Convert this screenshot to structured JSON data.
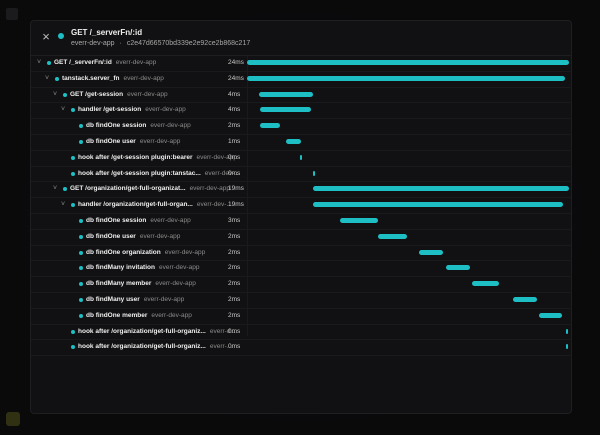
{
  "header": {
    "close_symbol": "×",
    "title": "GET /_serverFn/:id",
    "service": "everr-dev-app",
    "separator": "·",
    "trace_id": "c2e47d66570bd339e2e92ce2b868c217",
    "accent": "#1ebfc4"
  },
  "spans": [
    {
      "name": "GET /_serverFn/:id",
      "service": "everr-dev-app",
      "duration": "24ms",
      "depth": 0,
      "expander": "˅",
      "start_ms": 0,
      "length_ms": 24
    },
    {
      "name": "tanstack.server_fn",
      "service": "everr-dev-app",
      "duration": "24ms",
      "depth": 1,
      "expander": "˅",
      "start_ms": 0,
      "length_ms": 23.7
    },
    {
      "name": "GET /get-session",
      "service": "everr-dev-app",
      "duration": "4ms",
      "depth": 2,
      "expander": "˅",
      "start_ms": 0.9,
      "length_ms": 4
    },
    {
      "name": "handler /get-session",
      "service": "everr-dev-app",
      "duration": "4ms",
      "depth": 3,
      "expander": "˅",
      "start_ms": 0.95,
      "length_ms": 3.8
    },
    {
      "name": "db findOne session",
      "service": "everr-dev-app",
      "duration": "2ms",
      "depth": 4,
      "expander": "",
      "start_ms": 0.95,
      "length_ms": 1.5
    },
    {
      "name": "db findOne user",
      "service": "everr-dev-app",
      "duration": "1ms",
      "depth": 4,
      "expander": "",
      "start_ms": 2.9,
      "length_ms": 1.1
    },
    {
      "name": "hook after /get-session plugin:bearer",
      "service": "everr-dev-app",
      "duration": "0ms",
      "depth": 3,
      "expander": "",
      "start_ms": 3.95,
      "length_ms": 0.1
    },
    {
      "name": "hook after /get-session plugin:tanstac...",
      "service": "everr-dev-...",
      "duration": "0ms",
      "depth": 3,
      "expander": "",
      "start_ms": 4.9,
      "length_ms": 0.08
    },
    {
      "name": "GET /organization/get-full-organizat...",
      "service": "everr-dev-app",
      "duration": "19ms",
      "depth": 2,
      "expander": "˅",
      "start_ms": 4.95,
      "length_ms": 19.05
    },
    {
      "name": "handler /organization/get-full-organ...",
      "service": "everr-dev-...",
      "duration": "19ms",
      "depth": 3,
      "expander": "˅",
      "start_ms": 4.95,
      "length_ms": 18.6
    },
    {
      "name": "db findOne session",
      "service": "everr-dev-app",
      "duration": "3ms",
      "depth": 4,
      "expander": "",
      "start_ms": 6.9,
      "length_ms": 2.9
    },
    {
      "name": "db findOne user",
      "service": "everr-dev-app",
      "duration": "2ms",
      "depth": 4,
      "expander": "",
      "start_ms": 9.8,
      "length_ms": 2.1
    },
    {
      "name": "db findOne organization",
      "service": "everr-dev-app",
      "duration": "2ms",
      "depth": 4,
      "expander": "",
      "start_ms": 12.8,
      "length_ms": 1.8
    },
    {
      "name": "db findMany invitation",
      "service": "everr-dev-app",
      "duration": "2ms",
      "depth": 4,
      "expander": "",
      "start_ms": 14.8,
      "length_ms": 1.8
    },
    {
      "name": "db findMany member",
      "service": "everr-dev-app",
      "duration": "2ms",
      "depth": 4,
      "expander": "",
      "start_ms": 16.8,
      "length_ms": 2
    },
    {
      "name": "db findMany user",
      "service": "everr-dev-app",
      "duration": "2ms",
      "depth": 4,
      "expander": "",
      "start_ms": 19.8,
      "length_ms": 1.8
    },
    {
      "name": "db findOne member",
      "service": "everr-dev-app",
      "duration": "2ms",
      "depth": 4,
      "expander": "",
      "start_ms": 21.8,
      "length_ms": 1.7
    },
    {
      "name": "hook after /organization/get-full-organiz...",
      "service": "everr-d...",
      "duration": "0ms",
      "depth": 3,
      "expander": "",
      "start_ms": 23.75,
      "length_ms": 0.15
    },
    {
      "name": "hook after /organization/get-full-organiz...",
      "service": "everr-...",
      "duration": "0ms",
      "depth": 3,
      "expander": "",
      "start_ms": 23.75,
      "length_ms": 0.15
    }
  ]
}
